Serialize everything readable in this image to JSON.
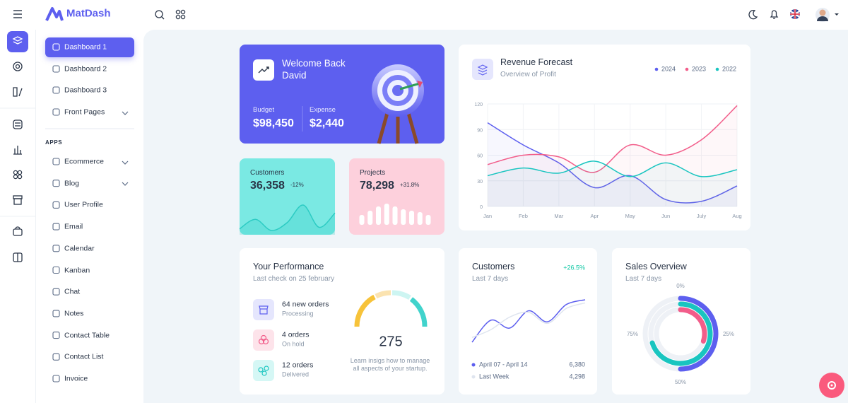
{
  "topbar": {
    "brand": "MatDash"
  },
  "sidebar": {
    "menu": [
      "Dashboard 1",
      "Dashboard 2",
      "Dashboard 3",
      "Front Pages"
    ],
    "apps_heading": "APPS",
    "apps": [
      "Ecommerce",
      "Blog",
      "User Profile",
      "Email",
      "Calendar",
      "Kanban",
      "Chat",
      "Notes",
      "Contact Table",
      "Contact List",
      "Invoice"
    ]
  },
  "welcome": {
    "title": "Welcome Back David",
    "budget_label": "Budget",
    "budget": "$98,450",
    "expense_label": "Expense",
    "expense": "$2,440"
  },
  "customers_card": {
    "title": "Customers",
    "value": "36,358",
    "change": "-12%",
    "chart": {
      "type": "area",
      "color": "#2ccbc3",
      "values": [
        10,
        22,
        8,
        18,
        40,
        12,
        30
      ]
    }
  },
  "projects_card": {
    "title": "Projects",
    "value": "78,298",
    "change": "+31.8%",
    "chart": {
      "type": "bar",
      "color": "#ffffff",
      "values": [
        14,
        20,
        26,
        30,
        26,
        22,
        20,
        18,
        14
      ]
    }
  },
  "revenue": {
    "title": "Revenue Forecast",
    "subtitle": "Overview of Profit",
    "chart": {
      "type": "line",
      "fill": true,
      "grid": true,
      "categories": [
        "Jan",
        "Feb",
        "Mar",
        "Apr",
        "May",
        "Jun",
        "July",
        "Aug"
      ],
      "series": [
        {
          "name": "2024",
          "color": "#5d5fef",
          "values": [
            98,
            72,
            51,
            22,
            36,
            8,
            6,
            24
          ]
        },
        {
          "name": "2023",
          "color": "#f25d8a",
          "values": [
            49,
            60,
            58,
            40,
            72,
            60,
            78,
            118
          ]
        },
        {
          "name": "2022",
          "color": "#19c5c0",
          "values": [
            36,
            45,
            39,
            53,
            35,
            51,
            35,
            43
          ]
        }
      ],
      "ylim": [
        0,
        120
      ],
      "yticks": [
        0,
        30,
        60,
        90,
        120
      ]
    }
  },
  "performance": {
    "title": "Your Performance",
    "subtitle": "Last check on 25 february",
    "items": [
      {
        "title": "64 new orders",
        "status": "Processing"
      },
      {
        "title": "4 orders",
        "status": "On hold"
      },
      {
        "title": "12 orders",
        "status": "Delivered"
      }
    ],
    "score": "275",
    "note": "Learn insigs how to manage all aspects of your startup."
  },
  "customers_week": {
    "title": "Customers",
    "subtitle": "Last 7 days",
    "change": "+26.5%",
    "chart": {
      "type": "line",
      "series": [
        {
          "name": "April 07 - April 14",
          "color": "#5d5fef",
          "total": "6,380",
          "values": [
            12,
            40,
            30,
            52,
            38,
            60,
            66
          ]
        },
        {
          "name": "Last Week",
          "color": "#dfe5ef",
          "total": "4,298",
          "values": [
            18,
            28,
            44,
            50,
            36,
            55,
            62
          ]
        }
      ]
    }
  },
  "sales": {
    "title": "Sales Overview",
    "subtitle": "Last 7 days",
    "chart": {
      "type": "radial",
      "ticks": [
        {
          "value": 0,
          "label": "0%"
        },
        {
          "value": 25,
          "label": "25%"
        },
        {
          "value": 50,
          "label": "50%"
        },
        {
          "value": 75,
          "label": "75%"
        }
      ],
      "series": [
        {
          "color": "#5d5fef",
          "value": 50
        },
        {
          "color": "#19c5c0",
          "value": 70
        },
        {
          "color": "#f25d8a",
          "value": 30
        }
      ]
    }
  }
}
